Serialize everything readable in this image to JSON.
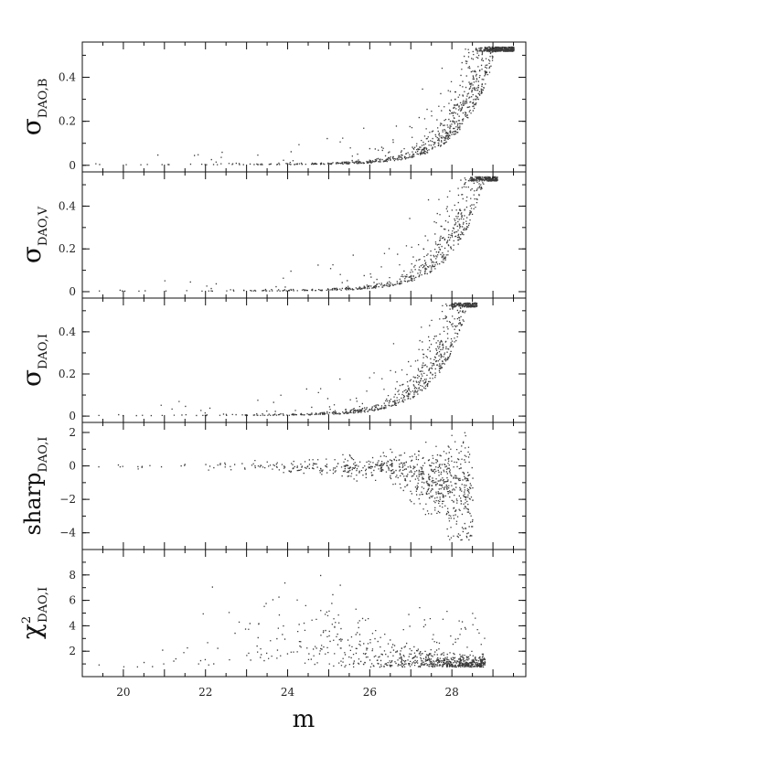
{
  "chart_data": {
    "type": "scatter",
    "ink_color": "#3a3a3a",
    "xlabel": "m",
    "xlim": [
      19,
      29.8
    ],
    "x_ticks": [
      20,
      22,
      24,
      26,
      28
    ],
    "x_tick_labels": [
      "20",
      "22",
      "24",
      "26",
      "28"
    ],
    "panels": [
      {
        "id": "sigma-b",
        "ylabel": {
          "symbol": "σ",
          "subscript": "DAO,B",
          "superscript": ""
        },
        "ylim": [
          -0.03,
          0.56
        ],
        "y_ticks": [
          0,
          0.2,
          0.4
        ],
        "y_tick_labels": [
          "0",
          "0.2",
          "0.4"
        ],
        "series": {
          "kind": "error",
          "x_min": 19.2,
          "x_max": 29.5,
          "floor": 0.005,
          "knee": 27.6,
          "scale": 0.072,
          "cap": 0.54
        }
      },
      {
        "id": "sigma-v",
        "ylabel": {
          "symbol": "σ",
          "subscript": "DAO,V",
          "superscript": ""
        },
        "ylim": [
          -0.03,
          0.56
        ],
        "y_ticks": [
          0,
          0.2,
          0.4
        ],
        "y_tick_labels": [
          "0",
          "0.2",
          "0.4"
        ],
        "series": {
          "kind": "error",
          "x_min": 19.2,
          "x_max": 29.1,
          "floor": 0.005,
          "knee": 27.3,
          "scale": 0.07,
          "cap": 0.54
        }
      },
      {
        "id": "sigma-i",
        "ylabel": {
          "symbol": "σ",
          "subscript": "DAO,I",
          "superscript": ""
        },
        "ylim": [
          -0.03,
          0.56
        ],
        "y_ticks": [
          0,
          0.2,
          0.4
        ],
        "y_tick_labels": [
          "0",
          "0.2",
          "0.4"
        ],
        "series": {
          "kind": "error",
          "x_min": 19.2,
          "x_max": 28.6,
          "floor": 0.005,
          "knee": 26.9,
          "scale": 0.07,
          "cap": 0.54
        }
      },
      {
        "id": "sharp-i",
        "ylabel": {
          "symbol": "sharp",
          "subscript": "DAO,I",
          "superscript": ""
        },
        "ylim": [
          -5,
          2.6
        ],
        "y_ticks": [
          -4,
          -2,
          0,
          2
        ],
        "y_tick_labels": [
          "−4",
          "−2",
          "0",
          "2"
        ],
        "series": {
          "kind": "sharp",
          "x_min": 19.2,
          "x_max": 28.5,
          "center": 0.0,
          "upper": 2.2,
          "lower": -4.4
        }
      },
      {
        "id": "chi2-i",
        "ylabel": {
          "symbol": "χ",
          "subscript": "DAO,I",
          "superscript": "2"
        },
        "ylim": [
          0,
          10
        ],
        "y_ticks": [
          2,
          4,
          6,
          8
        ],
        "y_tick_labels": [
          "2",
          "4",
          "6",
          "8"
        ],
        "series": {
          "kind": "chi",
          "x_min": 19.2,
          "x_max": 28.8,
          "peak_x": 23.8,
          "peak_y": 4.5,
          "base": 0.8
        }
      }
    ]
  }
}
